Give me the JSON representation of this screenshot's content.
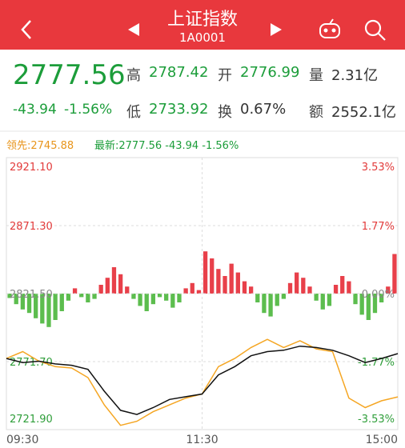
{
  "header": {
    "title": "上证指数",
    "code": "1A0001"
  },
  "quote": {
    "price": "2777.56",
    "change": "-43.94",
    "change_pct": "-1.56%",
    "stats": [
      {
        "label": "高",
        "value": "2787.42"
      },
      {
        "label": "开",
        "value": "2776.99"
      },
      {
        "label": "量",
        "value": "2.31亿"
      },
      {
        "label": "低",
        "value": "2733.92"
      },
      {
        "label": "换",
        "value": "0.67%"
      },
      {
        "label": "额",
        "value": "2552.1亿"
      }
    ]
  },
  "chart_data": [
    {
      "type": "line",
      "x": [
        0,
        10,
        20,
        30,
        40,
        50,
        60,
        70,
        80,
        90,
        100,
        110,
        120,
        130,
        140,
        150,
        160,
        170,
        180,
        190,
        200,
        210,
        220,
        230,
        240
      ],
      "series": [
        {
          "name": "领先:2745.88",
          "color": "#f5a623",
          "values": [
            2774,
            2779,
            2772,
            2768,
            2767,
            2760,
            2740,
            2725,
            2728,
            2735,
            2740,
            2745,
            2748,
            2768,
            2774,
            2782,
            2788,
            2782,
            2787,
            2781,
            2779,
            2745,
            2738,
            2743,
            2745.88
          ]
        },
        {
          "name": "最新:2777.56 -43.94 -1.56%",
          "color": "#111111",
          "values": [
            2774,
            2771,
            2772,
            2770,
            2769,
            2766,
            2750,
            2736,
            2733,
            2738,
            2744,
            2746,
            2748,
            2762,
            2768,
            2776,
            2779,
            2780,
            2783,
            2782,
            2780,
            2776,
            2771,
            2774,
            2777.56
          ]
        }
      ],
      "xlim": [
        0,
        240
      ],
      "xticks": [
        {
          "value": 0,
          "label": "09:30"
        },
        {
          "value": 120,
          "label": "11:30"
        },
        {
          "value": 240,
          "label": "15:00"
        }
      ],
      "ylim": [
        2721.9,
        2921.1
      ],
      "yticks": [
        {
          "value": 2921.1,
          "label": "2921.10"
        },
        {
          "value": 2871.3,
          "label": "2871.30"
        },
        {
          "value": 2821.5,
          "label": "2821.50"
        },
        {
          "value": 2771.7,
          "label": "2771.70"
        },
        {
          "value": 2721.9,
          "label": "2721.90"
        }
      ],
      "y2lim": [
        -3.53,
        3.53
      ],
      "y2ticks": [
        {
          "value": 3.53,
          "label": "3.53%"
        },
        {
          "value": 1.77,
          "label": "1.77%"
        },
        {
          "value": 0,
          "label": "0.00%"
        },
        {
          "value": -1.77,
          "label": "-1.77%"
        },
        {
          "value": -3.53,
          "label": "-3.53%"
        }
      ],
      "grid": true
    },
    {
      "type": "bar",
      "x": [
        2,
        6,
        10,
        14,
        18,
        22,
        26,
        30,
        34,
        38,
        42,
        46,
        50,
        54,
        58,
        62,
        66,
        70,
        74,
        78,
        82,
        86,
        90,
        94,
        98,
        102,
        106,
        110,
        114,
        118,
        122,
        126,
        130,
        134,
        138,
        142,
        146,
        150,
        154,
        158,
        162,
        166,
        170,
        174,
        178,
        182,
        186,
        190,
        194,
        198,
        202,
        206,
        210,
        214,
        218,
        222,
        226,
        230,
        234,
        238
      ],
      "values": [
        -5,
        -12,
        -18,
        -22,
        -28,
        -34,
        -38,
        -30,
        -20,
        -8,
        6,
        -4,
        -10,
        -6,
        10,
        18,
        30,
        22,
        8,
        -6,
        -14,
        -20,
        -12,
        -4,
        -8,
        -16,
        -10,
        6,
        12,
        4,
        48,
        40,
        28,
        20,
        34,
        24,
        14,
        8,
        -10,
        -22,
        -26,
        -14,
        -6,
        12,
        24,
        18,
        8,
        -8,
        -18,
        -14,
        10,
        20,
        14,
        -12,
        -24,
        -30,
        -22,
        -10,
        8,
        45
      ],
      "xlim": [
        0,
        240
      ],
      "ylim": [
        -50,
        50
      ],
      "up_color": "#e8404a",
      "down_color": "#5cbd4e"
    }
  ]
}
